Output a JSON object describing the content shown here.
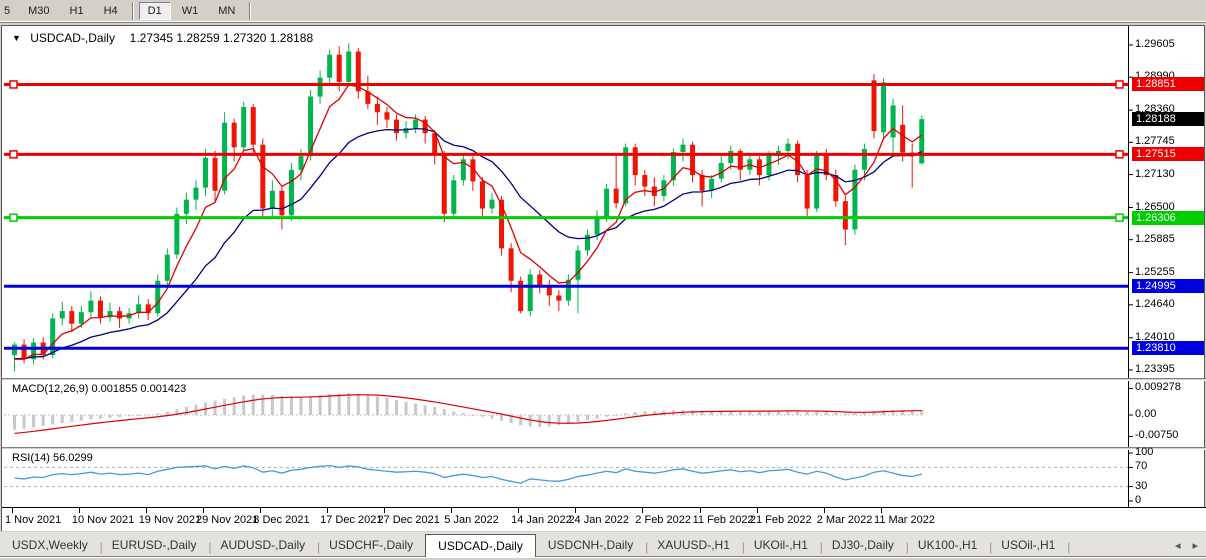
{
  "toolbar": {
    "timeframes": [
      "5",
      "M30",
      "H1",
      "H4",
      "D1",
      "W1",
      "MN"
    ],
    "active": "D1"
  },
  "chart": {
    "title": "USDCAD-,Daily",
    "ohlc_text": "1.27345 1.28259 1.27320 1.28188",
    "macd_label": "MACD(12,26,9) 0.001855 0.001423",
    "rsi_label": "RSI(14) 56.0299"
  },
  "chart_data": {
    "type": "candlestick",
    "symbol": "USDCAD-",
    "period": "Daily",
    "current_bar": {
      "open": 1.27345,
      "high": 1.28259,
      "low": 1.2732,
      "close": 1.28188
    },
    "current_price": 1.28188,
    "price_axis_ticks": [
      1.29605,
      1.2899,
      1.2836,
      1.27745,
      1.2713,
      1.265,
      1.25885,
      1.25255,
      1.2464,
      1.2401,
      1.23395
    ],
    "hlines": [
      {
        "price": 1.28851,
        "label": "1.28851",
        "color": "#ee0000",
        "markers": true
      },
      {
        "price": 1.27515,
        "label": "1.27515",
        "color": "#ee0000",
        "markers": true
      },
      {
        "price": 1.26306,
        "label": "1.26306",
        "color": "#00ce00",
        "markers": true
      },
      {
        "price": 1.24995,
        "label": "1.24995",
        "color": "#0000dd",
        "markers": false
      },
      {
        "price": 1.2381,
        "label": "1.23810",
        "color": "#0000dd",
        "markers": false
      }
    ],
    "colors": {
      "bull": "#00b44e",
      "bear": "#ee1505",
      "ma_fast": "#dd0000",
      "ma_slow": "#000080",
      "macd_hist": "#c8c8c8",
      "macd_signal": "#dd0000",
      "rsi_line": "#4a96e0",
      "current_badge": "#000000"
    },
    "date_labels": [
      {
        "i": 0,
        "label": "1 Nov 2021"
      },
      {
        "i": 7,
        "label": "10 Nov 2021"
      },
      {
        "i": 14,
        "label": "19 Nov 2021"
      },
      {
        "i": 20,
        "label": "29 Nov 2021"
      },
      {
        "i": 26,
        "label": "8 Dec 2021"
      },
      {
        "i": 33,
        "label": "17 Dec 2021"
      },
      {
        "i": 39,
        "label": "27 Dec 2021"
      },
      {
        "i": 46,
        "label": "5 Jan 2022"
      },
      {
        "i": 53,
        "label": "14 Jan 2022"
      },
      {
        "i": 59,
        "label": "24 Jan 2022"
      },
      {
        "i": 66,
        "label": "2 Feb 2022"
      },
      {
        "i": 72,
        "label": "11 Feb 2022"
      },
      {
        "i": 78,
        "label": "21 Feb 2022"
      },
      {
        "i": 85,
        "label": "2 Mar 2022"
      },
      {
        "i": 91,
        "label": "11 Mar 2022"
      }
    ],
    "candles": [
      [
        1.2368,
        1.2392,
        1.2337,
        1.2388
      ],
      [
        1.2388,
        1.2398,
        1.2352,
        1.236
      ],
      [
        1.236,
        1.24,
        1.235,
        1.2392
      ],
      [
        1.2392,
        1.2402,
        1.236,
        1.2368
      ],
      [
        1.2368,
        1.2448,
        1.2362,
        1.2438
      ],
      [
        1.2438,
        1.247,
        1.2425,
        1.2452
      ],
      [
        1.2452,
        1.2462,
        1.2412,
        1.2428
      ],
      [
        1.2428,
        1.2462,
        1.242,
        1.245
      ],
      [
        1.245,
        1.249,
        1.244,
        1.2472
      ],
      [
        1.2472,
        1.248,
        1.2428,
        1.244
      ],
      [
        1.244,
        1.2468,
        1.2432,
        1.2452
      ],
      [
        1.2452,
        1.246,
        1.242,
        1.2438
      ],
      [
        1.2438,
        1.2458,
        1.2428,
        1.2448
      ],
      [
        1.2448,
        1.2482,
        1.2438,
        1.2465
      ],
      [
        1.2465,
        1.2475,
        1.2435,
        1.2448
      ],
      [
        1.2448,
        1.2522,
        1.2442,
        1.251
      ],
      [
        1.251,
        1.2572,
        1.2498,
        1.256
      ],
      [
        1.256,
        1.265,
        1.2552,
        1.2638
      ],
      [
        1.2638,
        1.2678,
        1.2618,
        1.2665
      ],
      [
        1.2665,
        1.2702,
        1.2645,
        1.2688
      ],
      [
        1.2688,
        1.2762,
        1.2672,
        1.2745
      ],
      [
        1.2745,
        1.2758,
        1.2662,
        1.2682
      ],
      [
        1.2682,
        1.2832,
        1.2675,
        1.2812
      ],
      [
        1.2812,
        1.282,
        1.2738,
        1.2765
      ],
      [
        1.2765,
        1.2852,
        1.2758,
        1.2842
      ],
      [
        1.2842,
        1.2848,
        1.2752,
        1.277
      ],
      [
        1.277,
        1.2782,
        1.2628,
        1.2648
      ],
      [
        1.2648,
        1.2702,
        1.2632,
        1.2682
      ],
      [
        1.2682,
        1.2692,
        1.2608,
        1.2635
      ],
      [
        1.2635,
        1.2735,
        1.2625,
        1.2722
      ],
      [
        1.2722,
        1.2762,
        1.2702,
        1.2748
      ],
      [
        1.2748,
        1.2875,
        1.274,
        1.2862
      ],
      [
        1.2862,
        1.2912,
        1.2848,
        1.2898
      ],
      [
        1.2898,
        1.2952,
        1.2882,
        1.2942
      ],
      [
        1.2942,
        1.2958,
        1.2872,
        1.289
      ],
      [
        1.289,
        1.2964,
        1.2882,
        1.2948
      ],
      [
        1.2948,
        1.2955,
        1.2858,
        1.2872
      ],
      [
        1.2872,
        1.2902,
        1.2838,
        1.2848
      ],
      [
        1.2848,
        1.2862,
        1.2808,
        1.2832
      ],
      [
        1.2832,
        1.2842,
        1.2802,
        1.2818
      ],
      [
        1.2818,
        1.2828,
        1.2778,
        1.2792
      ],
      [
        1.2792,
        1.2815,
        1.2782,
        1.2802
      ],
      [
        1.2802,
        1.2828,
        1.2792,
        1.2818
      ],
      [
        1.2818,
        1.2825,
        1.2772,
        1.2792
      ],
      [
        1.2792,
        1.2798,
        1.2732,
        1.2752
      ],
      [
        1.2752,
        1.2758,
        1.2622,
        1.2638
      ],
      [
        1.2638,
        1.2712,
        1.2628,
        1.2702
      ],
      [
        1.2702,
        1.2752,
        1.2692,
        1.2742
      ],
      [
        1.2742,
        1.2748,
        1.2682,
        1.27
      ],
      [
        1.27,
        1.2708,
        1.2632,
        1.2648
      ],
      [
        1.2648,
        1.2678,
        1.2638,
        1.2665
      ],
      [
        1.2665,
        1.2672,
        1.2558,
        1.2572
      ],
      [
        1.2572,
        1.2582,
        1.2488,
        1.251
      ],
      [
        1.251,
        1.2518,
        1.2448,
        1.2452
      ],
      [
        1.2452,
        1.2532,
        1.2442,
        1.2522
      ],
      [
        1.2522,
        1.253,
        1.2486,
        1.2502
      ],
      [
        1.2502,
        1.2512,
        1.2462,
        1.2482
      ],
      [
        1.2482,
        1.2492,
        1.2452,
        1.2472
      ],
      [
        1.2472,
        1.2522,
        1.2462,
        1.2512
      ],
      [
        1.2512,
        1.2578,
        1.2448,
        1.2568
      ],
      [
        1.2568,
        1.2608,
        1.2558,
        1.2598
      ],
      [
        1.2598,
        1.2645,
        1.2588,
        1.2632
      ],
      [
        1.2632,
        1.2695,
        1.2622,
        1.2686
      ],
      [
        1.2686,
        1.2752,
        1.2648,
        1.2658
      ],
      [
        1.2658,
        1.2772,
        1.2652,
        1.2765
      ],
      [
        1.2765,
        1.2772,
        1.2692,
        1.2712
      ],
      [
        1.2712,
        1.2722,
        1.2672,
        1.269
      ],
      [
        1.269,
        1.2708,
        1.2652,
        1.2672
      ],
      [
        1.2672,
        1.2712,
        1.2662,
        1.2702
      ],
      [
        1.2702,
        1.2762,
        1.2692,
        1.2756
      ],
      [
        1.2756,
        1.2782,
        1.2738,
        1.277
      ],
      [
        1.277,
        1.2776,
        1.2698,
        1.2712
      ],
      [
        1.2712,
        1.2722,
        1.2652,
        1.2682
      ],
      [
        1.2682,
        1.2712,
        1.2668,
        1.2705
      ],
      [
        1.2705,
        1.2748,
        1.2698,
        1.2735
      ],
      [
        1.2735,
        1.2768,
        1.2722,
        1.2758
      ],
      [
        1.2758,
        1.2762,
        1.2702,
        1.2722
      ],
      [
        1.2722,
        1.2752,
        1.2712,
        1.2742
      ],
      [
        1.2742,
        1.2748,
        1.2692,
        1.2712
      ],
      [
        1.2712,
        1.2758,
        1.2702,
        1.2752
      ],
      [
        1.2752,
        1.2768,
        1.2732,
        1.2758
      ],
      [
        1.2758,
        1.2782,
        1.2742,
        1.2772
      ],
      [
        1.2772,
        1.2778,
        1.2698,
        1.2712
      ],
      [
        1.2712,
        1.2722,
        1.2632,
        1.2648
      ],
      [
        1.2648,
        1.2758,
        1.2642,
        1.2752
      ],
      [
        1.2752,
        1.2762,
        1.2702,
        1.2712
      ],
      [
        1.2712,
        1.2722,
        1.2652,
        1.2662
      ],
      [
        1.2662,
        1.2672,
        1.2578,
        1.2608
      ],
      [
        1.2608,
        1.2732,
        1.2598,
        1.2722
      ],
      [
        1.2722,
        1.2772,
        1.2702,
        1.2762
      ],
      [
        1.2893,
        1.2905,
        1.2782,
        1.2796
      ],
      [
        1.2794,
        1.2897,
        1.278,
        1.2889
      ],
      [
        1.2784,
        1.2858,
        1.2752,
        1.2845
      ],
      [
        1.2808,
        1.2845,
        1.2738,
        1.2755
      ],
      [
        1.2755,
        1.2772,
        1.2688,
        1.2748
      ],
      [
        1.27345,
        1.28259,
        1.2732,
        1.28188
      ]
    ],
    "indicators": {
      "macd": {
        "name": "MACD",
        "params": [
          12,
          26,
          9
        ],
        "value": 0.001855,
        "signal_value": 0.001423,
        "axis_labels": [
          "0.009278",
          "0.00",
          "-0.00750"
        ],
        "axis_values": [
          0.009278,
          0.0,
          -0.0075
        ],
        "histogram": [
          -0.0052,
          -0.0048,
          -0.0043,
          -0.0038,
          -0.0033,
          -0.0028,
          -0.0024,
          -0.002,
          -0.0016,
          -0.0013,
          -0.001,
          -0.0007,
          -0.0004,
          -0.0001,
          0.0002,
          0.0006,
          0.0012,
          0.002,
          0.0028,
          0.0036,
          0.0044,
          0.005,
          0.0057,
          0.0062,
          0.0068,
          0.0071,
          0.0072,
          0.007,
          0.0067,
          0.0065,
          0.0064,
          0.0066,
          0.0069,
          0.0073,
          0.0075,
          0.0076,
          0.0074,
          0.007,
          0.0065,
          0.0059,
          0.0052,
          0.0046,
          0.004,
          0.0034,
          0.0028,
          0.002,
          0.0012,
          0.0006,
          0.0,
          -0.0006,
          -0.0012,
          -0.002,
          -0.0028,
          -0.0036,
          -0.004,
          -0.0042,
          -0.004,
          -0.0036,
          -0.003,
          -0.0024,
          -0.0018,
          -0.0012,
          -0.0006,
          0.0,
          0.0006,
          0.001,
          0.0013,
          0.0014,
          0.0015,
          0.0016,
          0.0017,
          0.0016,
          0.0015,
          0.0014,
          0.0014,
          0.0015,
          0.0015,
          0.0014,
          0.0013,
          0.0014,
          0.0015,
          0.0016,
          0.0015,
          0.0013,
          0.0012,
          0.0011,
          0.0008,
          0.0005,
          0.0006,
          0.0009,
          0.0013,
          0.0016,
          0.0018,
          0.0018,
          0.0017,
          0.001855
        ]
      },
      "rsi": {
        "name": "RSI",
        "params": [
          14
        ],
        "value": 56.0299,
        "axis_labels": [
          "100",
          "70",
          "30",
          "0"
        ],
        "axis_values": [
          100,
          70,
          30,
          0
        ],
        "levels": [
          70,
          30
        ],
        "values": [
          48,
          46,
          50,
          49,
          55,
          57,
          55,
          57,
          60,
          56,
          58,
          55,
          56,
          58,
          55,
          62,
          66,
          70,
          71,
          72,
          73,
          67,
          72,
          68,
          73,
          69,
          60,
          63,
          58,
          64,
          66,
          70,
          72,
          74,
          70,
          73,
          71,
          66,
          64,
          62,
          60,
          61,
          62,
          60,
          57,
          49,
          53,
          56,
          53,
          49,
          51,
          45,
          41,
          37,
          46,
          44,
          42,
          41,
          45,
          51,
          54,
          58,
          62,
          59,
          67,
          62,
          60,
          58,
          61,
          65,
          67,
          62,
          58,
          60,
          63,
          65,
          61,
          63,
          59,
          63,
          64,
          66,
          60,
          56,
          62,
          58,
          50,
          44,
          48,
          52,
          60,
          63,
          58,
          53,
          51,
          56.03
        ]
      }
    }
  },
  "tabs": {
    "items": [
      "USDX,Weekly",
      "EURUSD-,Daily",
      "AUDUSD-,Daily",
      "USDCHF-,Daily",
      "USDCAD-,Daily",
      "USDCNH-,Daily",
      "XAUUSD-,H1",
      "UKOil-,H1",
      "DJ30-,Daily",
      "UK100-,H1",
      "USOil-,H1"
    ],
    "active": "USDCAD-,Daily",
    "left_arrow": "◂",
    "right_arrow": "▸"
  }
}
